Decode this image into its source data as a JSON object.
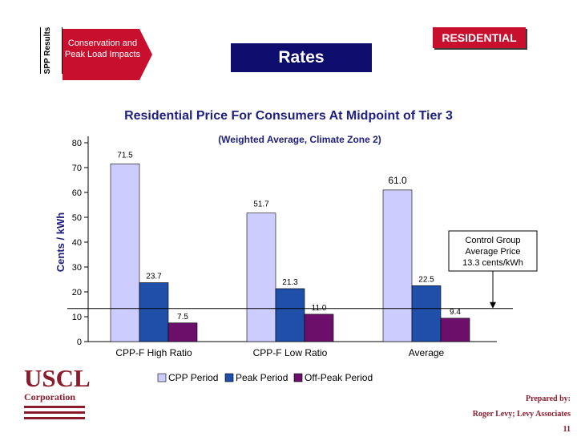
{
  "header": {
    "side_tab_label": "SPP Results",
    "section_label": "Conservation and Peak Load Impacts",
    "rates_title": "Rates",
    "category_badge": "RESIDENTIAL"
  },
  "chart_title": "Residential Price For Consumers At Midpoint of Tier 3",
  "colors": {
    "cpp": "#ccccff",
    "peak": "#1f4fa8",
    "offpeak": "#6b0f6b",
    "arrow": "#c8102e",
    "rates_box": "#0d0d6e",
    "title_text": "#202080",
    "logo": "#8b1c2c"
  },
  "chart_data": {
    "type": "bar",
    "subtitle": "(Weighted Average, Climate Zone 2)",
    "ylabel": "Cents / kWh",
    "xlabel": "",
    "ylim": [
      0,
      80
    ],
    "yticks": [
      0,
      10,
      20,
      30,
      40,
      50,
      60,
      70,
      80
    ],
    "categories": [
      "CPP-F High Ratio",
      "CPP-F Low Ratio",
      "Average"
    ],
    "series": [
      {
        "name": "CPP Period",
        "values": [
          71.5,
          51.7,
          61.0
        ],
        "labels": [
          "71.5",
          "51.7",
          "61.0"
        ]
      },
      {
        "name": "Peak Period",
        "values": [
          23.7,
          21.3,
          22.5
        ],
        "labels": [
          "23.7",
          "21.3",
          "22.5"
        ]
      },
      {
        "name": "Off-Peak Period",
        "values": [
          7.5,
          11.0,
          9.4
        ],
        "labels": [
          "7.5",
          "11.0",
          "9.4"
        ]
      }
    ],
    "reference_line": {
      "value": 13.3
    },
    "annotation": "Control Group Average Price 13.3 cents/kWh",
    "legend_position": "bottom"
  },
  "logo": {
    "name": "USCL",
    "sub": "Corporation"
  },
  "footer": {
    "prepared_by": "Prepared by:",
    "author": "Roger Levy; Levy Associates",
    "page_number": "11"
  }
}
